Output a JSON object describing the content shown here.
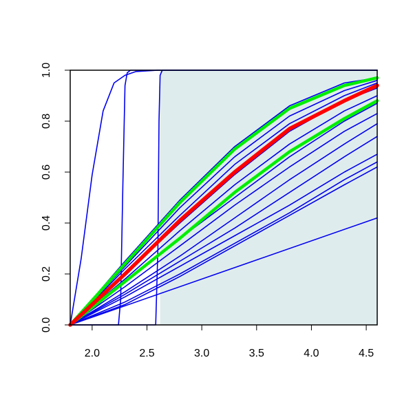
{
  "chart_data": {
    "type": "line",
    "title": "",
    "xlabel": "",
    "ylabel": "",
    "xlim": [
      1.8,
      4.6
    ],
    "ylim": [
      0.0,
      1.0
    ],
    "x_ticks": [
      2.0,
      2.5,
      3.0,
      3.5,
      4.0,
      4.5
    ],
    "x_tick_labels": [
      "2.0",
      "2.5",
      "3.0",
      "3.5",
      "4.0",
      "4.5"
    ],
    "y_ticks": [
      0.0,
      0.2,
      0.4,
      0.6,
      0.8,
      1.0
    ],
    "y_tick_labels": [
      "0.0",
      "0.2",
      "0.4",
      "0.6",
      "0.8",
      "1.0"
    ],
    "grid": false,
    "legend": "none",
    "shaded_region": {
      "x_from": 2.62,
      "x_to": 4.6,
      "y_from": 0.0,
      "y_to": 1.0,
      "color": "#dfeced"
    },
    "colors": {
      "curves": "#0000ee",
      "highlight": "#ff0000",
      "bounds": "#00ee00"
    },
    "series": [
      {
        "role": "curve",
        "x": [
          1.8,
          4.6
        ],
        "y": [
          0.0,
          0.42
        ]
      },
      {
        "role": "curve",
        "x": [
          1.8,
          2.3,
          2.8,
          3.3,
          3.8,
          4.3,
          4.6
        ],
        "y": [
          0.0,
          0.08,
          0.19,
          0.31,
          0.43,
          0.55,
          0.62
        ]
      },
      {
        "role": "curve",
        "x": [
          1.8,
          2.3,
          2.8,
          3.3,
          3.8,
          4.3,
          4.6
        ],
        "y": [
          0.0,
          0.09,
          0.2,
          0.32,
          0.44,
          0.57,
          0.64
        ]
      },
      {
        "role": "curve",
        "x": [
          1.8,
          2.3,
          2.8,
          3.3,
          3.8,
          4.3,
          4.6
        ],
        "y": [
          0.0,
          0.11,
          0.23,
          0.35,
          0.47,
          0.6,
          0.67
        ]
      },
      {
        "role": "curve",
        "x": [
          1.8,
          2.3,
          2.8,
          3.3,
          3.8,
          4.3,
          4.6
        ],
        "y": [
          0.0,
          0.12,
          0.25,
          0.38,
          0.52,
          0.66,
          0.74
        ]
      },
      {
        "role": "curve",
        "x": [
          1.8,
          2.3,
          2.8,
          3.3,
          3.8,
          4.3,
          4.6
        ],
        "y": [
          0.0,
          0.13,
          0.27,
          0.42,
          0.57,
          0.71,
          0.79
        ]
      },
      {
        "role": "curve",
        "x": [
          1.8,
          2.3,
          2.8,
          3.3,
          3.8,
          4.3,
          4.6
        ],
        "y": [
          0.0,
          0.15,
          0.31,
          0.47,
          0.62,
          0.76,
          0.83
        ]
      },
      {
        "role": "curve",
        "x": [
          1.8,
          2.3,
          2.8,
          3.3,
          3.8,
          4.3,
          4.6
        ],
        "y": [
          0.0,
          0.17,
          0.34,
          0.5,
          0.66,
          0.8,
          0.87
        ]
      },
      {
        "role": "curve",
        "x": [
          1.8,
          2.3,
          2.8,
          3.3,
          3.8,
          4.3,
          4.6
        ],
        "y": [
          0.0,
          0.18,
          0.37,
          0.55,
          0.71,
          0.84,
          0.9
        ]
      },
      {
        "role": "curve",
        "x": [
          1.8,
          2.3,
          2.8,
          3.3,
          3.8,
          4.3,
          4.6
        ],
        "y": [
          0.0,
          0.2,
          0.4,
          0.59,
          0.76,
          0.88,
          0.93
        ]
      },
      {
        "role": "curve",
        "x": [
          1.8,
          2.3,
          2.8,
          3.3,
          3.8,
          4.3,
          4.6
        ],
        "y": [
          0.0,
          0.22,
          0.43,
          0.63,
          0.79,
          0.9,
          0.95
        ]
      },
      {
        "role": "curve",
        "x": [
          1.8,
          2.3,
          2.8,
          3.3,
          3.8,
          4.3,
          4.6
        ],
        "y": [
          0.0,
          0.23,
          0.46,
          0.66,
          0.82,
          0.92,
          0.96
        ]
      },
      {
        "role": "curve",
        "x": [
          1.8,
          2.3,
          2.8,
          3.3,
          3.8,
          4.3,
          4.6
        ],
        "y": [
          0.0,
          0.25,
          0.49,
          0.7,
          0.86,
          0.95,
          0.97
        ]
      },
      {
        "role": "curve",
        "x": [
          1.8,
          1.9,
          2.0,
          2.1,
          2.2,
          2.3,
          2.4,
          2.6,
          4.6
        ],
        "y": [
          0.0,
          0.26,
          0.59,
          0.84,
          0.95,
          0.98,
          0.995,
          1.0,
          1.0
        ]
      },
      {
        "role": "curve",
        "x": [
          1.8,
          2.24,
          2.26,
          2.28,
          2.3,
          2.32,
          2.35,
          4.6
        ],
        "y": [
          0.0,
          0.0,
          0.1,
          0.55,
          0.94,
          0.99,
          1.0,
          1.0
        ]
      },
      {
        "role": "curve",
        "x": [
          1.8,
          2.58,
          2.6,
          2.61,
          2.62,
          2.64,
          4.6
        ],
        "y": [
          0.0,
          0.0,
          0.3,
          0.8,
          0.98,
          1.0,
          1.0
        ]
      },
      {
        "role": "bound",
        "x": [
          1.8,
          2.3,
          2.8,
          3.3,
          3.8,
          4.3,
          4.6
        ],
        "y": [
          0.0,
          0.17,
          0.34,
          0.52,
          0.68,
          0.81,
          0.88
        ]
      },
      {
        "role": "bound",
        "x": [
          1.8,
          2.3,
          2.8,
          3.3,
          3.8,
          4.3,
          4.6
        ],
        "y": [
          0.0,
          0.24,
          0.48,
          0.69,
          0.85,
          0.94,
          0.97
        ]
      },
      {
        "role": "highlight",
        "x": [
          1.8,
          2.3,
          2.8,
          3.3,
          3.8,
          4.3,
          4.6
        ],
        "y": [
          0.0,
          0.2,
          0.41,
          0.6,
          0.77,
          0.88,
          0.94
        ]
      }
    ]
  }
}
